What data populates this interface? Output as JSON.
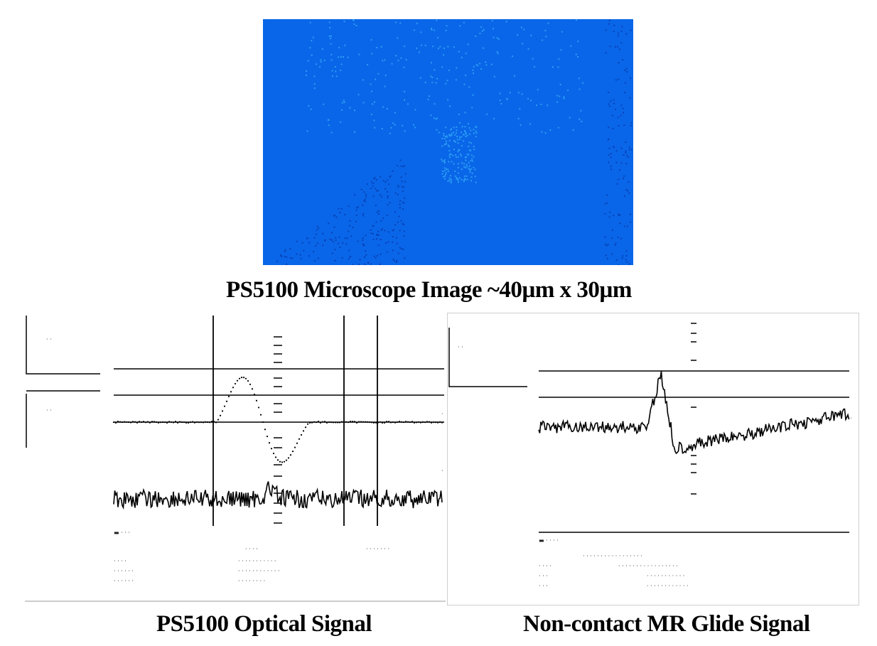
{
  "captions": {
    "microscope": "PS5100 Microscope Image ~40µm x 30µm",
    "optical": "PS5100 Optical Signal",
    "glide": "Non-contact MR Glide Signal"
  },
  "colors": {
    "microscope_bg": "#0a66e8",
    "speckle_light": "#2a9df4",
    "speckle_dark": "#0642b8",
    "trace": "#000000"
  },
  "images": {
    "microscope": "microscope-image-blue-speckled",
    "optical_scope": "oscilloscope-screenshot-optical",
    "glide_scope": "oscilloscope-screenshot-glide"
  }
}
